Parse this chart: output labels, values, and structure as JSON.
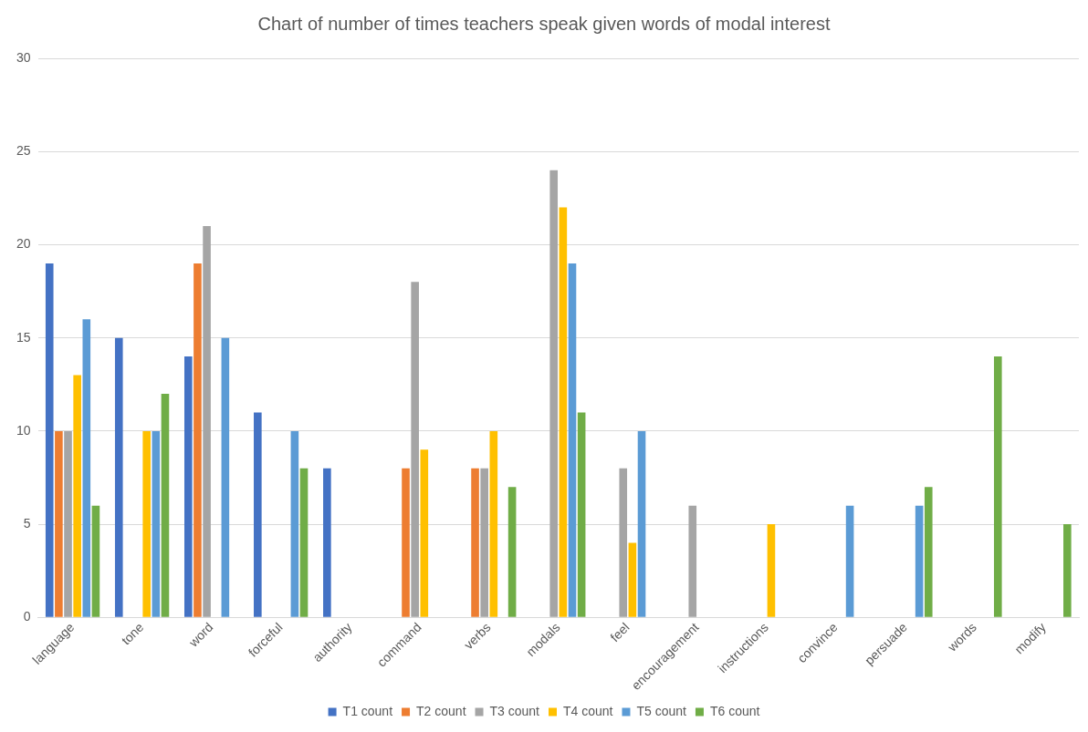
{
  "chart_data": {
    "type": "bar",
    "title": "Chart of number of times teachers speak given words of modal interest",
    "categories": [
      "language",
      "tone",
      "word",
      "forceful",
      "authority",
      "command",
      "verbs",
      "modals",
      "feel",
      "encouragement",
      "instructions",
      "convince",
      "persuade",
      "words",
      "modify"
    ],
    "series": [
      {
        "name": "T1 count",
        "color": "#4472c4",
        "values": [
          19,
          15,
          14,
          11,
          8,
          0,
          0,
          0,
          0,
          0,
          0,
          0,
          0,
          0,
          0
        ]
      },
      {
        "name": "T2 count",
        "color": "#ed7d31",
        "values": [
          10,
          0,
          19,
          0,
          0,
          8,
          8,
          0,
          0,
          0,
          0,
          0,
          0,
          0,
          0
        ]
      },
      {
        "name": "T3 count",
        "color": "#a5a5a5",
        "values": [
          10,
          0,
          21,
          0,
          0,
          18,
          8,
          24,
          8,
          6,
          0,
          0,
          0,
          0,
          0
        ]
      },
      {
        "name": "T4 count",
        "color": "#ffc000",
        "values": [
          13,
          10,
          0,
          0,
          0,
          9,
          10,
          22,
          4,
          0,
          5,
          0,
          0,
          0,
          0
        ]
      },
      {
        "name": "T5 count",
        "color": "#5b9bd5",
        "values": [
          16,
          10,
          15,
          10,
          0,
          0,
          0,
          19,
          10,
          0,
          0,
          6,
          6,
          0,
          0
        ]
      },
      {
        "name": "T6 count",
        "color": "#70ad47",
        "values": [
          6,
          12,
          0,
          8,
          0,
          0,
          7,
          11,
          0,
          0,
          0,
          0,
          7,
          14,
          5
        ]
      }
    ],
    "ylim": [
      0,
      30
    ],
    "yticks": [
      0,
      5,
      10,
      15,
      20,
      25,
      30
    ],
    "grid": "y",
    "legend": "bottom"
  }
}
